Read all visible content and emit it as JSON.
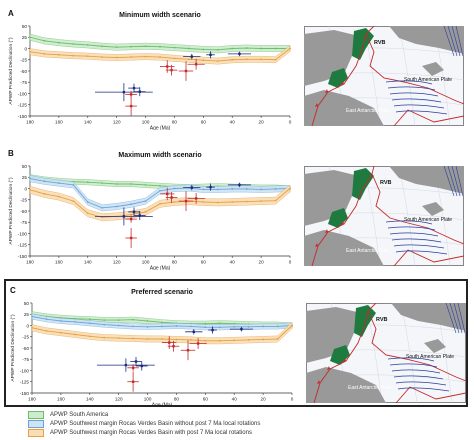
{
  "colors": {
    "green": "#6abf6a",
    "green_fill": "#cdebcd",
    "blue": "#6aa7d8",
    "blue_fill": "#cfe3f5",
    "orange": "#e8a040",
    "orange_fill": "#f9ddb5",
    "red_marker": "#c62828",
    "navy_marker": "#1a2a80",
    "land": "#999999",
    "land_green": "#1f7a3f",
    "boundary": "#c62828",
    "lineation": "#2b3f9b"
  },
  "legend": {
    "items": [
      {
        "label": "APWP South America",
        "color_key": "green"
      },
      {
        "label": "APWP Southwest margin Rocas Verdes Basin without post 7 Ma local rotations",
        "color_key": "blue"
      },
      {
        "label": "APWP Southwest margin Rocas Verdes Basin with post 7 Ma local rotations",
        "color_key": "orange"
      }
    ]
  },
  "panels": [
    {
      "letter": "A",
      "title": "Minimum width scenario",
      "map": {
        "rvb": "RVB",
        "plate1": "South American Plate",
        "plate2": "East Antarctic Plate"
      }
    },
    {
      "letter": "B",
      "title": "Maximum width scenario",
      "map": {
        "rvb": "RVB",
        "plate1": "South American Plate",
        "plate2": "East Antarctic Plate"
      }
    },
    {
      "letter": "C",
      "title": "Preferred scenario",
      "map": {
        "rvb": "RVB",
        "plate1": "South American Plate",
        "plate2": "East Antarctic Plate"
      }
    }
  ],
  "chart_data": [
    {
      "type": "line",
      "title": "Minimum width scenario",
      "xlabel": "Age (Ma)",
      "ylabel": "APWP Predicted Declination (°)",
      "xlim": [
        180,
        0
      ],
      "ylim": [
        -150,
        50
      ],
      "xticks": [
        180,
        160,
        140,
        120,
        100,
        80,
        60,
        40,
        20,
        0
      ],
      "yticks": [
        50,
        25,
        0,
        -25,
        -50,
        -75,
        -100,
        -125,
        -150
      ],
      "series": [
        {
          "name": "APWP South America",
          "color_key": "green",
          "x": [
            180,
            170,
            160,
            150,
            140,
            130,
            120,
            110,
            100,
            90,
            80,
            70,
            60,
            50,
            40,
            30,
            20,
            10,
            0
          ],
          "y": [
            25,
            17,
            13,
            10,
            8,
            5,
            3,
            4,
            5,
            4,
            2,
            0,
            -2,
            -3,
            0,
            1,
            0,
            0,
            0
          ],
          "band": 7
        },
        {
          "name": "APWP Southwest margin Rocas Verdes Basin with post 7 Ma local rotations",
          "color_key": "orange",
          "x": [
            180,
            170,
            160,
            150,
            140,
            130,
            120,
            110,
            100,
            90,
            80,
            70,
            60,
            50,
            40,
            30,
            20,
            10,
            0
          ],
          "y": [
            -7,
            -12,
            -14,
            -16,
            -17,
            -19,
            -20,
            -19,
            -18,
            -19,
            -22,
            -24,
            -26,
            -28,
            -25,
            -24,
            -24,
            -25,
            0
          ],
          "band": 7
        }
      ],
      "observations": [
        {
          "age": 115,
          "age_err": 20,
          "dec": -97,
          "dec_err": 20,
          "group": "navy"
        },
        {
          "age": 108,
          "age_err": 4,
          "dec": -88,
          "dec_err": 10,
          "group": "navy"
        },
        {
          "age": 104,
          "age_err": 4,
          "dec": -96,
          "dec_err": 10,
          "group": "navy"
        },
        {
          "age": 110,
          "age_err": 4,
          "dec": -102,
          "dec_err": 8,
          "group": "red"
        },
        {
          "age": 110,
          "age_err": 4,
          "dec": -128,
          "dec_err": 22,
          "group": "red"
        },
        {
          "age": 85,
          "age_err": 5,
          "dec": -40,
          "dec_err": 14,
          "group": "red"
        },
        {
          "age": 82,
          "age_err": 4,
          "dec": -48,
          "dec_err": 12,
          "group": "red"
        },
        {
          "age": 72,
          "age_err": 5,
          "dec": -50,
          "dec_err": 22,
          "group": "red"
        },
        {
          "age": 65,
          "age_err": 6,
          "dec": -35,
          "dec_err": 12,
          "group": "red"
        },
        {
          "age": 68,
          "age_err": 6,
          "dec": -18,
          "dec_err": 6,
          "group": "navy"
        },
        {
          "age": 55,
          "age_err": 3,
          "dec": -14,
          "dec_err": 8,
          "group": "navy"
        },
        {
          "age": 35,
          "age_err": 8,
          "dec": -12,
          "dec_err": 5,
          "group": "navy"
        }
      ]
    },
    {
      "type": "line",
      "title": "Maximum width scenario",
      "xlabel": "Age (Ma)",
      "ylabel": "APWP Predicted Declination (°)",
      "xlim": [
        180,
        0
      ],
      "ylim": [
        -150,
        50
      ],
      "xticks": [
        180,
        160,
        140,
        120,
        100,
        80,
        60,
        40,
        20,
        0
      ],
      "yticks": [
        50,
        25,
        0,
        -25,
        -50,
        -75,
        -100,
        -125,
        -150
      ],
      "series": [
        {
          "name": "APWP South America",
          "color_key": "green",
          "x": [
            180,
            170,
            160,
            150,
            140,
            130,
            120,
            110,
            100,
            90,
            80,
            70,
            60,
            50,
            40,
            30,
            20,
            10,
            0
          ],
          "y": [
            25,
            20,
            17,
            15,
            14,
            12,
            10,
            10,
            8,
            6,
            4,
            3,
            4,
            5,
            4,
            3,
            2,
            2,
            0
          ],
          "band": 6
        },
        {
          "name": "APWP Southwest margin Rocas Verdes Basin without post 7 Ma local rotations",
          "color_key": "blue",
          "x": [
            180,
            170,
            160,
            150,
            140,
            130,
            120,
            110,
            100,
            90,
            80,
            70,
            60,
            50,
            40,
            30,
            20,
            10,
            0
          ],
          "y": [
            22,
            16,
            12,
            8,
            -30,
            -43,
            -40,
            -35,
            -28,
            -5,
            0,
            1,
            -2,
            -2,
            -1,
            -1,
            -2,
            -1,
            0
          ],
          "band": 7
        },
        {
          "name": "APWP Southwest margin Rocas Verdes Basin with post 7 Ma local rotations",
          "color_key": "orange",
          "x": [
            180,
            170,
            160,
            150,
            140,
            130,
            120,
            110,
            100,
            90,
            80,
            70,
            60,
            50,
            40,
            30,
            20,
            10,
            0
          ],
          "y": [
            -3,
            -12,
            -18,
            -28,
            -55,
            -64,
            -62,
            -58,
            -52,
            -34,
            -30,
            -28,
            -30,
            -31,
            -30,
            -29,
            -28,
            -27,
            0
          ],
          "band": 8
        }
      ],
      "observations": [
        {
          "age": 115,
          "age_err": 20,
          "dec": -62,
          "dec_err": 20,
          "group": "navy"
        },
        {
          "age": 108,
          "age_err": 4,
          "dec": -52,
          "dec_err": 10,
          "group": "navy"
        },
        {
          "age": 104,
          "age_err": 4,
          "dec": -60,
          "dec_err": 10,
          "group": "navy"
        },
        {
          "age": 110,
          "age_err": 4,
          "dec": -68,
          "dec_err": 8,
          "group": "red"
        },
        {
          "age": 110,
          "age_err": 4,
          "dec": -110,
          "dec_err": 22,
          "group": "red"
        },
        {
          "age": 85,
          "age_err": 5,
          "dec": -12,
          "dec_err": 14,
          "group": "red"
        },
        {
          "age": 82,
          "age_err": 4,
          "dec": -20,
          "dec_err": 12,
          "group": "red"
        },
        {
          "age": 72,
          "age_err": 5,
          "dec": -28,
          "dec_err": 22,
          "group": "red"
        },
        {
          "age": 65,
          "age_err": 6,
          "dec": -22,
          "dec_err": 12,
          "group": "red"
        },
        {
          "age": 68,
          "age_err": 6,
          "dec": 2,
          "dec_err": 6,
          "group": "navy"
        },
        {
          "age": 55,
          "age_err": 3,
          "dec": 3,
          "dec_err": 8,
          "group": "navy"
        },
        {
          "age": 35,
          "age_err": 8,
          "dec": 8,
          "dec_err": 5,
          "group": "navy"
        }
      ]
    },
    {
      "type": "line",
      "title": "Preferred scenario",
      "xlabel": "Age (Ma)",
      "ylabel": "APWP Predicted Declination (°)",
      "xlim": [
        180,
        0
      ],
      "ylim": [
        -150,
        50
      ],
      "xticks": [
        180,
        160,
        140,
        120,
        100,
        80,
        60,
        40,
        20,
        0
      ],
      "yticks": [
        50,
        25,
        0,
        -25,
        -50,
        -75,
        -100,
        -125,
        -150
      ],
      "series": [
        {
          "name": "APWP South America",
          "color_key": "green",
          "x": [
            180,
            170,
            160,
            150,
            140,
            130,
            120,
            110,
            100,
            90,
            80,
            70,
            60,
            50,
            40,
            30,
            20,
            10,
            0
          ],
          "y": [
            25,
            20,
            17,
            15,
            14,
            12,
            12,
            13,
            10,
            7,
            5,
            4,
            4,
            5,
            4,
            3,
            2,
            2,
            0
          ],
          "band": 6
        },
        {
          "name": "APWP Southwest margin Rocas Verdes Basin without post 7 Ma local rotations",
          "color_key": "blue",
          "x": [
            180,
            170,
            160,
            150,
            140,
            130,
            120,
            110,
            100,
            90,
            80,
            70,
            60,
            50,
            40,
            30,
            20,
            10,
            0
          ],
          "y": [
            20,
            14,
            10,
            8,
            5,
            2,
            0,
            -2,
            -3,
            -2,
            -1,
            -2,
            -4,
            -4,
            -3,
            -3,
            -2,
            -2,
            0
          ],
          "band": 6
        },
        {
          "name": "APWP Southwest margin Rocas Verdes Basin with post 7 Ma local rotations",
          "color_key": "orange",
          "x": [
            180,
            170,
            160,
            150,
            140,
            130,
            120,
            110,
            100,
            90,
            80,
            70,
            60,
            50,
            40,
            30,
            20,
            10,
            0
          ],
          "y": [
            -5,
            -12,
            -16,
            -20,
            -24,
            -27,
            -28,
            -29,
            -30,
            -30,
            -31,
            -32,
            -34,
            -34,
            -33,
            -32,
            -31,
            -30,
            0
          ],
          "band": 7
        }
      ],
      "observations": [
        {
          "age": 115,
          "age_err": 20,
          "dec": -88,
          "dec_err": 15,
          "group": "navy"
        },
        {
          "age": 108,
          "age_err": 4,
          "dec": -80,
          "dec_err": 10,
          "group": "navy"
        },
        {
          "age": 104,
          "age_err": 4,
          "dec": -90,
          "dec_err": 10,
          "group": "navy"
        },
        {
          "age": 110,
          "age_err": 4,
          "dec": -94,
          "dec_err": 8,
          "group": "red"
        },
        {
          "age": 110,
          "age_err": 4,
          "dec": -125,
          "dec_err": 22,
          "group": "red"
        },
        {
          "age": 85,
          "age_err": 5,
          "dec": -38,
          "dec_err": 14,
          "group": "red"
        },
        {
          "age": 82,
          "age_err": 4,
          "dec": -46,
          "dec_err": 12,
          "group": "red"
        },
        {
          "age": 72,
          "age_err": 5,
          "dec": -55,
          "dec_err": 22,
          "group": "red"
        },
        {
          "age": 65,
          "age_err": 6,
          "dec": -40,
          "dec_err": 12,
          "group": "red"
        },
        {
          "age": 68,
          "age_err": 6,
          "dec": -14,
          "dec_err": 6,
          "group": "navy"
        },
        {
          "age": 55,
          "age_err": 3,
          "dec": -10,
          "dec_err": 8,
          "group": "navy"
        },
        {
          "age": 35,
          "age_err": 8,
          "dec": -8,
          "dec_err": 5,
          "group": "navy"
        }
      ]
    }
  ]
}
